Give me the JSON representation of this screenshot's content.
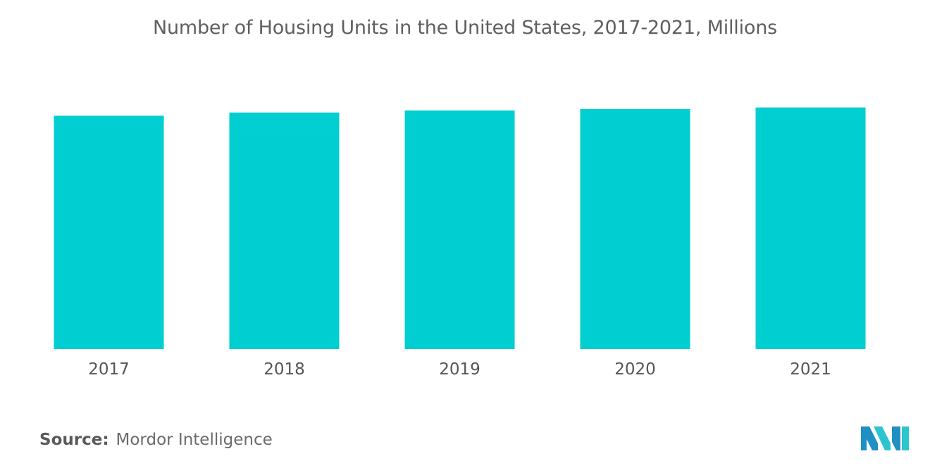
{
  "chart_data": {
    "type": "bar",
    "title": "Number of Housing Units in the United States, 2017-2021, Millions",
    "categories": [
      "2017",
      "2018",
      "2019",
      "2020",
      "2021"
    ],
    "values": [
      137.4,
      139.3,
      140.5,
      141.4,
      142.3
    ],
    "ylim": [
      0,
      160
    ],
    "grid": false,
    "bar_color": "#00ced1"
  },
  "source": {
    "label": "Source:",
    "text": "Mordor Intelligence"
  },
  "logo": {
    "icon": "mordor-intelligence-logo",
    "colors": [
      "#1f8fc4",
      "#2ec4cf"
    ]
  }
}
